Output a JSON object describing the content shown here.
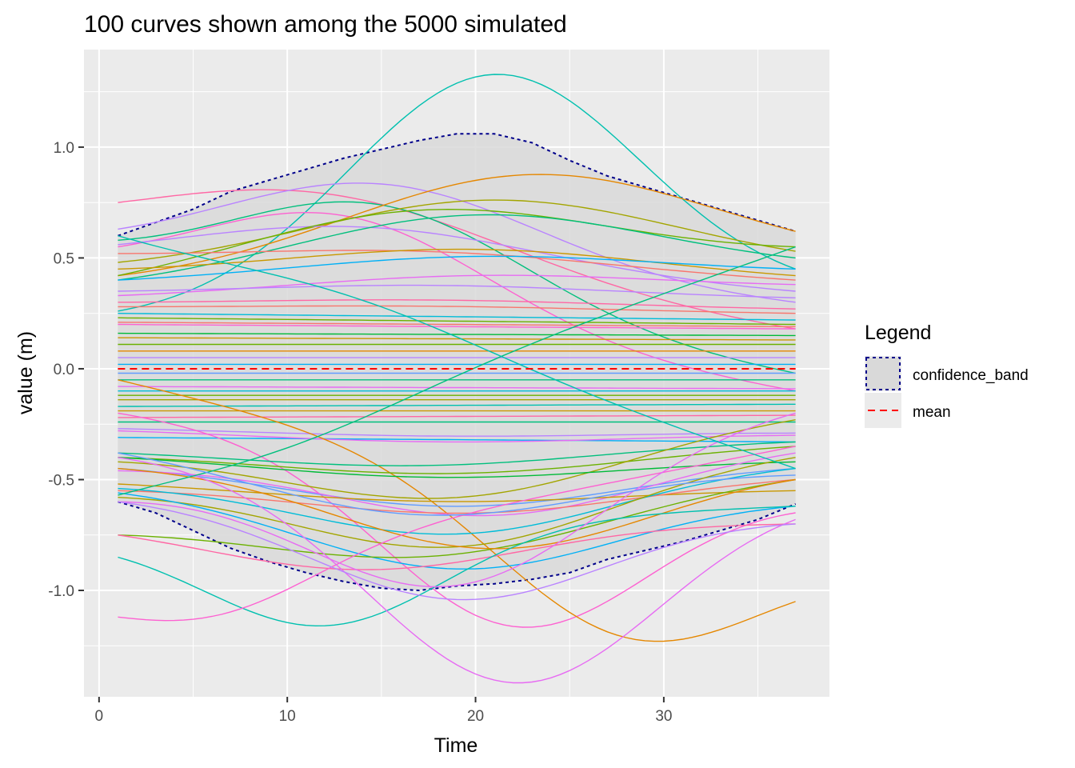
{
  "chart_data": {
    "type": "line",
    "title": "100 curves shown among the 5000 simulated",
    "xlabel": "Time",
    "ylabel": "value (m)",
    "xlim": [
      -0.8,
      38.8
    ],
    "ylim": [
      -1.48,
      1.44
    ],
    "x_ticks": [
      0,
      10,
      20,
      30
    ],
    "x_tick_labels": [
      "0",
      "10",
      "20",
      "30"
    ],
    "y_ticks": [
      -1.0,
      -0.5,
      0.0,
      0.5,
      1.0
    ],
    "y_tick_labels": [
      "-1.0",
      "-0.5",
      "0.0",
      "0.5",
      "1.0"
    ],
    "grid": true,
    "background": "#ebebeb",
    "x_range": [
      1,
      37
    ],
    "legend": {
      "title": "Legend",
      "placement": "right",
      "entries": [
        {
          "label": "confidence_band",
          "color": "#00008b",
          "fill": "#d9d9d9",
          "style": "dotted"
        },
        {
          "label": "mean",
          "color": "#ff0000",
          "style": "dashed"
        }
      ]
    },
    "series_note_colors": [
      "#f8766d",
      "#e58700",
      "#c99800",
      "#a3a500",
      "#6bb100",
      "#00ba38",
      "#00bf7d",
      "#00c0af",
      "#00bcd8",
      "#00b0f6",
      "#619cff",
      "#b983ff",
      "#e76bf3",
      "#fd61d1",
      "#ff67a4"
    ],
    "confidence_band": {
      "x": [
        1,
        3,
        5,
        7,
        9,
        11,
        13,
        15,
        17,
        19,
        21,
        23,
        25,
        27,
        29,
        31,
        33,
        35,
        37
      ],
      "upper": [
        0.6,
        0.66,
        0.72,
        0.8,
        0.85,
        0.9,
        0.95,
        0.99,
        1.03,
        1.06,
        1.06,
        1.02,
        0.94,
        0.87,
        0.82,
        0.77,
        0.72,
        0.67,
        0.62
      ],
      "lower": [
        -0.6,
        -0.65,
        -0.73,
        -0.81,
        -0.87,
        -0.92,
        -0.96,
        -0.99,
        -1.0,
        -0.98,
        -0.97,
        -0.95,
        -0.92,
        -0.86,
        -0.82,
        -0.78,
        -0.73,
        -0.68,
        -0.61
      ]
    },
    "mean": {
      "x": [
        1,
        37
      ],
      "y": [
        0.0,
        0.0
      ]
    },
    "curves": [
      {
        "color": "#ff67a4",
        "y0": 0.75,
        "y1": 0.18,
        "a": 0.35,
        "cx": 12,
        "w": 14
      },
      {
        "color": "#00c0af",
        "y0": 0.26,
        "y1": 0.45,
        "a": 1.05,
        "cx": 21,
        "w": 11
      },
      {
        "color": "#00bf7d",
        "y0": 0.58,
        "y1": -0.02,
        "a": 0.45,
        "cx": 15,
        "w": 11
      },
      {
        "color": "#b983ff",
        "y0": 0.63,
        "y1": 0.3,
        "a": 0.4,
        "cx": 15,
        "w": 12
      },
      {
        "color": "#fd61d1",
        "y0": 0.55,
        "y1": -0.1,
        "a": 0.45,
        "cx": 13,
        "w": 11
      },
      {
        "color": "#e58700",
        "y0": 0.42,
        "y1": 0.62,
        "a": 0.45,
        "cx": 23,
        "w": 14
      },
      {
        "color": "#a3a500",
        "y0": 0.48,
        "y1": 0.53,
        "a": 0.32,
        "cx": 21,
        "w": 14
      },
      {
        "color": "#b983ff",
        "y0": 0.56,
        "y1": 0.35,
        "a": 0.22,
        "cx": 14,
        "w": 14
      },
      {
        "color": "#6bb100",
        "y0": 0.42,
        "y1": 0.55,
        "a": 0.3,
        "cx": 17,
        "w": 14
      },
      {
        "color": "#00bf7d",
        "y0": 0.4,
        "y1": 0.5,
        "a": 0.3,
        "cx": 20,
        "w": 14
      },
      {
        "color": "#f8766d",
        "y0": 0.52,
        "y1": 0.4,
        "a": 0.08,
        "cx": 18,
        "w": 14
      },
      {
        "color": "#c99800",
        "y0": 0.45,
        "y1": 0.42,
        "a": 0.13,
        "cx": 20,
        "w": 14
      },
      {
        "color": "#00b0f6",
        "y0": 0.4,
        "y1": 0.45,
        "a": 0.1,
        "cx": 20,
        "w": 14
      },
      {
        "color": "#e76bf3",
        "y0": 0.33,
        "y1": 0.38,
        "a": 0.08,
        "cx": 20,
        "w": 14
      },
      {
        "color": "#b983ff",
        "y0": 0.35,
        "y1": 0.32,
        "a": 0.05,
        "cx": 18,
        "w": 14
      },
      {
        "color": "#ff67a4",
        "y0": 0.3,
        "y1": 0.27,
        "a": 0.03,
        "cx": 18,
        "w": 14
      },
      {
        "color": "#f8766d",
        "y0": 0.28,
        "y1": 0.25,
        "a": 0.02,
        "cx": 18,
        "w": 14
      },
      {
        "color": "#00bcd8",
        "y0": 0.25,
        "y1": 0.22,
        "a": 0.0,
        "cx": 18,
        "w": 14
      },
      {
        "color": "#6bb100",
        "y0": 0.23,
        "y1": 0.2,
        "a": 0.0,
        "cx": 18,
        "w": 14
      },
      {
        "color": "#f8766d",
        "y0": 0.21,
        "y1": 0.19,
        "a": 0.0,
        "cx": 18,
        "w": 14
      },
      {
        "color": "#fd61d1",
        "y0": 0.2,
        "y1": 0.18,
        "a": 0.0,
        "cx": 18,
        "w": 14
      },
      {
        "color": "#00ba38",
        "y0": 0.16,
        "y1": 0.15,
        "a": 0.0,
        "cx": 18,
        "w": 14
      },
      {
        "color": "#c99800",
        "y0": 0.14,
        "y1": 0.13,
        "a": 0.0,
        "cx": 18,
        "w": 14
      },
      {
        "color": "#6bb100",
        "y0": 0.11,
        "y1": 0.11,
        "a": 0.0,
        "cx": 18,
        "w": 14
      },
      {
        "color": "#e58700",
        "y0": 0.08,
        "y1": 0.08,
        "a": 0.0,
        "cx": 18,
        "w": 14
      },
      {
        "color": "#b983ff",
        "y0": 0.05,
        "y1": 0.05,
        "a": 0.0,
        "cx": 18,
        "w": 14
      },
      {
        "color": "#00b0f6",
        "y0": 0.02,
        "y1": 0.02,
        "a": 0.0,
        "cx": 18,
        "w": 14
      },
      {
        "color": "#619cff",
        "y0": -0.02,
        "y1": -0.02,
        "a": 0.0,
        "cx": 18,
        "w": 14
      },
      {
        "color": "#00bf7d",
        "y0": -0.05,
        "y1": -0.05,
        "a": 0.0,
        "cx": 18,
        "w": 14
      },
      {
        "color": "#e76bf3",
        "y0": -0.08,
        "y1": -0.09,
        "a": 0.0,
        "cx": 18,
        "w": 14
      },
      {
        "color": "#00bcd8",
        "y0": -0.1,
        "y1": -0.1,
        "a": 0.0,
        "cx": 18,
        "w": 14
      },
      {
        "color": "#6bb100",
        "y0": -0.12,
        "y1": -0.12,
        "a": 0.0,
        "cx": 18,
        "w": 14
      },
      {
        "color": "#a3a500",
        "y0": -0.14,
        "y1": -0.14,
        "a": 0.0,
        "cx": 18,
        "w": 14
      },
      {
        "color": "#00c0af",
        "y0": -0.17,
        "y1": -0.16,
        "a": 0.0,
        "cx": 18,
        "w": 14
      },
      {
        "color": "#c99800",
        "y0": -0.19,
        "y1": -0.19,
        "a": 0.0,
        "cx": 18,
        "w": 14
      },
      {
        "color": "#ff67a4",
        "y0": -0.22,
        "y1": -0.21,
        "a": 0.0,
        "cx": 18,
        "w": 14
      },
      {
        "color": "#00bf7d",
        "y0": -0.24,
        "y1": -0.24,
        "a": 0.0,
        "cx": 18,
        "w": 14
      },
      {
        "color": "#00b0f6",
        "y0": -0.31,
        "y1": -0.33,
        "a": 0.0,
        "cx": 18,
        "w": 14
      },
      {
        "color": "#b983ff",
        "y0": -0.27,
        "y1": -0.29,
        "a": -0.03,
        "cx": 18,
        "w": 14
      },
      {
        "color": "#e76bf3",
        "y0": -0.28,
        "y1": -0.3,
        "a": -0.05,
        "cx": 18,
        "w": 14
      },
      {
        "color": "#fd61d1",
        "y0": -0.2,
        "y1": -0.65,
        "a": -0.75,
        "cx": 22,
        "w": 10
      },
      {
        "color": "#e58700",
        "y0": -0.05,
        "y1": -1.05,
        "a": -0.62,
        "cx": 28,
        "w": 10
      },
      {
        "color": "#00bf7d",
        "y0": -0.38,
        "y1": -0.33,
        "a": -0.1,
        "cx": 17,
        "w": 14
      },
      {
        "color": "#6bb100",
        "y0": -0.4,
        "y1": -0.35,
        "a": -0.12,
        "cx": 19,
        "w": 14
      },
      {
        "color": "#a3a500",
        "y0": -0.42,
        "y1": -0.23,
        "a": -0.3,
        "cx": 19,
        "w": 13
      },
      {
        "color": "#00ba38",
        "y0": -0.4,
        "y1": -0.42,
        "a": -0.1,
        "cx": 18,
        "w": 14
      },
      {
        "color": "#619cff",
        "y0": -0.45,
        "y1": -0.45,
        "a": -0.2,
        "cx": 19,
        "w": 13
      },
      {
        "color": "#e76bf3",
        "y0": -0.46,
        "y1": -0.38,
        "a": -0.28,
        "cx": 21,
        "w": 12
      },
      {
        "color": "#c99800",
        "y0": -0.52,
        "y1": -0.55,
        "a": -0.08,
        "cx": 18,
        "w": 14
      },
      {
        "color": "#f8766d",
        "y0": -0.55,
        "y1": -0.5,
        "a": -0.15,
        "cx": 20,
        "w": 13
      },
      {
        "color": "#00bcd8",
        "y0": -0.54,
        "y1": -0.45,
        "a": -0.28,
        "cx": 19,
        "w": 12
      },
      {
        "color": "#a3a500",
        "y0": -0.58,
        "y1": -0.4,
        "a": -0.35,
        "cx": 19,
        "w": 12
      },
      {
        "color": "#00b0f6",
        "y0": -0.56,
        "y1": -0.62,
        "a": -0.35,
        "cx": 19,
        "w": 12
      },
      {
        "color": "#6bb100",
        "y0": -0.75,
        "y1": -0.5,
        "a": -0.25,
        "cx": 18,
        "w": 13
      },
      {
        "color": "#ff67a4",
        "y0": -0.75,
        "y1": -0.7,
        "a": -0.22,
        "cx": 14,
        "w": 12
      },
      {
        "color": "#e58700",
        "y0": -0.45,
        "y1": -0.5,
        "a": -0.38,
        "cx": 21,
        "w": 12
      },
      {
        "color": "#00c0af",
        "y0": -0.85,
        "y1": -0.62,
        "a": -0.45,
        "cx": 12,
        "w": 9
      },
      {
        "color": "#fd61d1",
        "y0": -1.12,
        "y1": -0.35,
        "a": -0.25,
        "cx": 6,
        "w": 8
      },
      {
        "color": "#e76bf3",
        "y0": -0.4,
        "y1": -0.68,
        "a": -0.95,
        "cx": 22,
        "w": 11
      },
      {
        "color": "#00bf7d",
        "y0": -0.57,
        "y1": 0.55,
        "a": -0.1,
        "cx": 10,
        "w": 10
      },
      {
        "color": "#e76bf3",
        "y0": -0.6,
        "y1": -0.2,
        "a": -0.62,
        "cx": 19,
        "w": 11
      },
      {
        "color": "#00c0af",
        "y0": 0.6,
        "y1": -0.45,
        "a": 0.1,
        "cx": 14,
        "w": 10
      },
      {
        "color": "#619cff",
        "y0": -0.38,
        "y1": -0.48,
        "a": -0.28,
        "cx": 17,
        "w": 13
      },
      {
        "color": "#b983ff",
        "y0": -0.6,
        "y1": -0.7,
        "a": -0.42,
        "cx": 19,
        "w": 11
      }
    ]
  }
}
